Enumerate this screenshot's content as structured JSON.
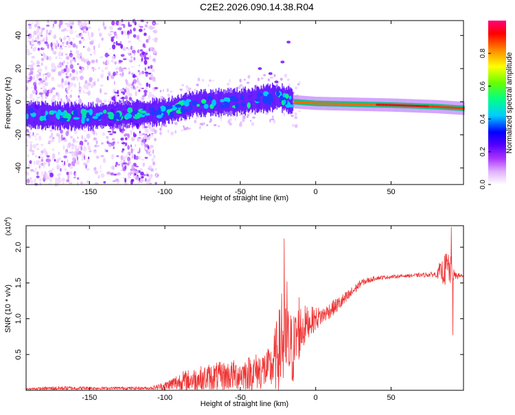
{
  "page_title": "C2E2.2026.090.14.38.R04",
  "chart_data": [
    {
      "type": "heatmap",
      "title": "C2E2.2026.090.14.38.R04",
      "xlabel": "Height of straight line (km)",
      "ylabel": "Frequency (Hz)",
      "xlim": [
        -192,
        98
      ],
      "ylim": [
        -50,
        49
      ],
      "xticks": [
        -150,
        -100,
        -50,
        0,
        50
      ],
      "yticks": [
        -40,
        -20,
        0,
        20,
        40
      ],
      "xtick_labels": [
        "-150",
        "-100",
        "-50",
        "0",
        "50"
      ],
      "ytick_labels": [
        "-40",
        "-20",
        "0",
        "20",
        "40"
      ],
      "colorbar": {
        "label": "Normalized spectral amplitude",
        "range": [
          0,
          1
        ],
        "ticks": [
          0.0,
          0.2,
          0.4,
          0.6,
          0.8
        ],
        "tick_labels": [
          "0.0",
          "0.2",
          "0.4",
          "0.6",
          "0.8"
        ],
        "colors": [
          "#ffffff",
          "#cc33ff",
          "#7700ff",
          "#0000ff",
          "#00ccff",
          "#00ff88",
          "#66ff00",
          "#ffff00",
          "#ff6600",
          "#ff0000",
          "#ff0066"
        ]
      },
      "band": [
        {
          "x": -190,
          "freq": -8
        },
        {
          "x": -150,
          "freq": -9
        },
        {
          "x": -135,
          "freq": -8
        },
        {
          "x": -100,
          "freq": -6
        },
        {
          "x": -80,
          "freq": -1
        },
        {
          "x": -50,
          "freq": 0
        },
        {
          "x": -25,
          "freq": 3
        },
        {
          "x": -15,
          "freq": 0
        },
        {
          "x": 0,
          "freq": -1
        },
        {
          "x": 50,
          "freq": -2
        },
        {
          "x": 80,
          "freq": -3
        },
        {
          "x": 98,
          "freq": -4
        }
      ],
      "scatter_region": {
        "x_from": -192,
        "x_to": -105
      }
    },
    {
      "type": "line",
      "xlabel": "Height of straight line (km)",
      "ylabel": "SNR (10 * v/v)",
      "y_multiplier": "(x10",
      "y_multiplier_exp": "4",
      "y_multiplier_close": ")",
      "xlim": [
        -192,
        98
      ],
      "ylim": [
        0.0,
        2.3
      ],
      "xticks": [
        -150,
        -100,
        -50,
        0,
        50
      ],
      "yticks": [
        0.5,
        1.0,
        1.5,
        2.0
      ],
      "xtick_labels": [
        "-150",
        "-100",
        "-50",
        "0",
        "50"
      ],
      "ytick_labels": [
        "0.5",
        "1.0",
        "1.5",
        "2.0"
      ],
      "color": "#ee3333",
      "envelope": [
        {
          "x": -192,
          "y": 0.02,
          "amp": 0.01
        },
        {
          "x": -170,
          "y": 0.03,
          "amp": 0.03
        },
        {
          "x": -150,
          "y": 0.03,
          "amp": 0.02
        },
        {
          "x": -110,
          "y": 0.03,
          "amp": 0.02
        },
        {
          "x": -100,
          "y": 0.06,
          "amp": 0.06
        },
        {
          "x": -90,
          "y": 0.12,
          "amp": 0.14
        },
        {
          "x": -70,
          "y": 0.18,
          "amp": 0.2
        },
        {
          "x": -50,
          "y": 0.22,
          "amp": 0.22
        },
        {
          "x": -30,
          "y": 0.3,
          "amp": 0.3
        },
        {
          "x": -22,
          "y": 0.65,
          "amp": 0.7
        },
        {
          "x": -15,
          "y": 0.55,
          "amp": 0.5
        },
        {
          "x": -12,
          "y": 0.8,
          "amp": 0.45
        },
        {
          "x": -5,
          "y": 0.95,
          "amp": 0.22
        },
        {
          "x": 5,
          "y": 1.05,
          "amp": 0.12
        },
        {
          "x": 20,
          "y": 1.28,
          "amp": 0.1
        },
        {
          "x": 30,
          "y": 1.5,
          "amp": 0.05
        },
        {
          "x": 40,
          "y": 1.57,
          "amp": 0.03
        },
        {
          "x": 60,
          "y": 1.6,
          "amp": 0.02
        },
        {
          "x": 80,
          "y": 1.62,
          "amp": 0.04
        },
        {
          "x": 88,
          "y": 1.7,
          "amp": 0.3
        },
        {
          "x": 92,
          "y": 1.6,
          "amp": 0.06
        },
        {
          "x": 98,
          "y": 1.6,
          "amp": 0.02
        }
      ],
      "spikes": [
        {
          "x": -21,
          "y": 2.12
        },
        {
          "x": -22.5,
          "y": 1.35
        },
        {
          "x": -19,
          "y": 1.52
        },
        {
          "x": -11,
          "y": 1.3
        },
        {
          "x": 82,
          "y": 1.78
        },
        {
          "x": 86,
          "y": 1.9
        },
        {
          "x": 90,
          "y": 2.28
        },
        {
          "x": 91,
          "y": 0.77
        }
      ]
    }
  ]
}
